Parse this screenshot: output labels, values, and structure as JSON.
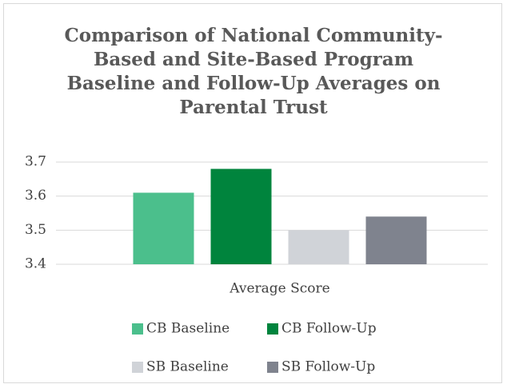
{
  "chart_data": {
    "type": "bar",
    "title": "Comparison of  National Community-Based and Site-Based Program Baseline and Follow-Up Averages on Parental Trust",
    "categories": [
      "Average Score"
    ],
    "series": [
      {
        "name": "CB Baseline",
        "color": "#4bbf8c",
        "values": [
          3.61
        ]
      },
      {
        "name": "CB Follow-Up",
        "color": "#00843d",
        "values": [
          3.68
        ]
      },
      {
        "name": "SB Baseline",
        "color": "#d0d3d8",
        "values": [
          3.5
        ]
      },
      {
        "name": "SB Follow-Up",
        "color": "#7f838e",
        "values": [
          3.54
        ]
      }
    ],
    "ylim": [
      3.4,
      3.7
    ],
    "yticks": [
      3.4,
      3.5,
      3.6,
      3.7
    ],
    "grid": true,
    "legend": "bottom"
  }
}
